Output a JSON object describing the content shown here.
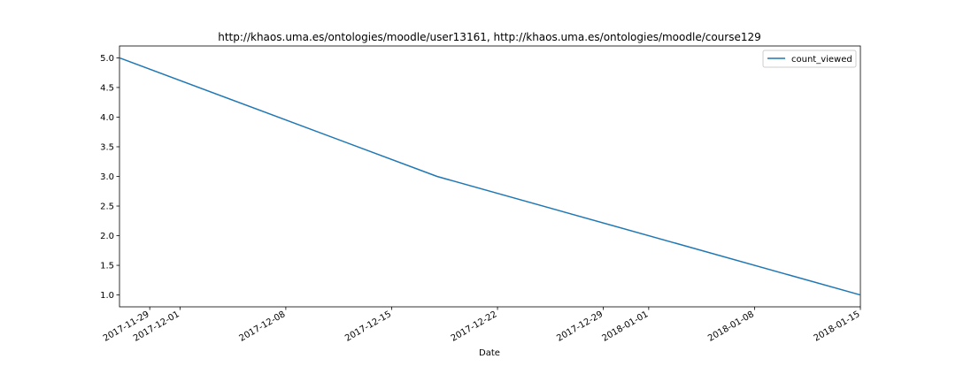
{
  "chart_data": {
    "type": "line",
    "title": "http://khaos.uma.es/ontologies/moodle/user13161, http://khaos.uma.es/ontologies/moodle/course129",
    "xlabel": "Date",
    "ylabel": "",
    "x_scale": "date",
    "xlim": [
      "2017-11-27",
      "2018-01-15"
    ],
    "ylim": [
      0.8,
      5.2
    ],
    "x_ticks": [
      "2017-11-29",
      "2017-12-01",
      "2017-12-08",
      "2017-12-15",
      "2017-12-22",
      "2017-12-29",
      "2018-01-01",
      "2018-01-08",
      "2018-01-15"
    ],
    "y_ticks": [
      "1.0",
      "1.5",
      "2.0",
      "2.5",
      "3.0",
      "3.5",
      "4.0",
      "4.5",
      "5.0"
    ],
    "grid": false,
    "legend": "top-right",
    "series": [
      {
        "name": "count_viewed",
        "color": "#1f77b4",
        "points": [
          {
            "x": "2017-11-27",
            "y": 5.0
          },
          {
            "x": "2017-12-18",
            "y": 3.0
          },
          {
            "x": "2018-01-15",
            "y": 1.0
          }
        ]
      }
    ]
  }
}
